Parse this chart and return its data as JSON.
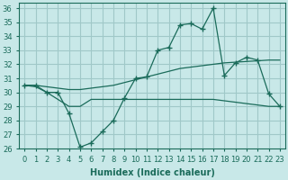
{
  "xlabel": "Humidex (Indice chaleur)",
  "bg_color": "#c8e8e8",
  "grid_color": "#a0c8c8",
  "line_color": "#1a6b5a",
  "xlim": [
    -0.5,
    23.5
  ],
  "ylim": [
    26,
    36.4
  ],
  "yticks": [
    26,
    27,
    28,
    29,
    30,
    31,
    32,
    33,
    34,
    35,
    36
  ],
  "xticks": [
    0,
    1,
    2,
    3,
    4,
    5,
    6,
    7,
    8,
    9,
    10,
    11,
    12,
    13,
    14,
    15,
    16,
    17,
    18,
    19,
    20,
    21,
    22,
    23
  ],
  "x": [
    0,
    1,
    2,
    3,
    4,
    5,
    6,
    7,
    8,
    9,
    10,
    11,
    12,
    13,
    14,
    15,
    16,
    17,
    18,
    19,
    20,
    21,
    22,
    23
  ],
  "y_main": [
    30.5,
    30.5,
    30.0,
    30.0,
    28.5,
    26.1,
    26.4,
    27.2,
    28.0,
    29.6,
    31.0,
    31.1,
    33.0,
    33.2,
    34.8,
    34.9,
    34.5,
    36.0,
    31.2,
    32.1,
    32.5,
    32.3,
    29.9,
    29.0
  ],
  "y_line2": [
    30.5,
    30.5,
    30.4,
    30.3,
    30.2,
    30.2,
    30.3,
    30.4,
    30.5,
    30.7,
    30.9,
    31.1,
    31.3,
    31.5,
    31.7,
    31.8,
    31.9,
    32.0,
    32.1,
    32.15,
    32.2,
    32.25,
    32.3,
    32.3
  ],
  "y_line3": [
    30.5,
    30.4,
    30.0,
    29.5,
    29.0,
    29.0,
    29.5,
    29.5,
    29.5,
    29.5,
    29.5,
    29.5,
    29.5,
    29.5,
    29.5,
    29.5,
    29.5,
    29.5,
    29.4,
    29.3,
    29.2,
    29.1,
    29.0,
    29.0
  ]
}
